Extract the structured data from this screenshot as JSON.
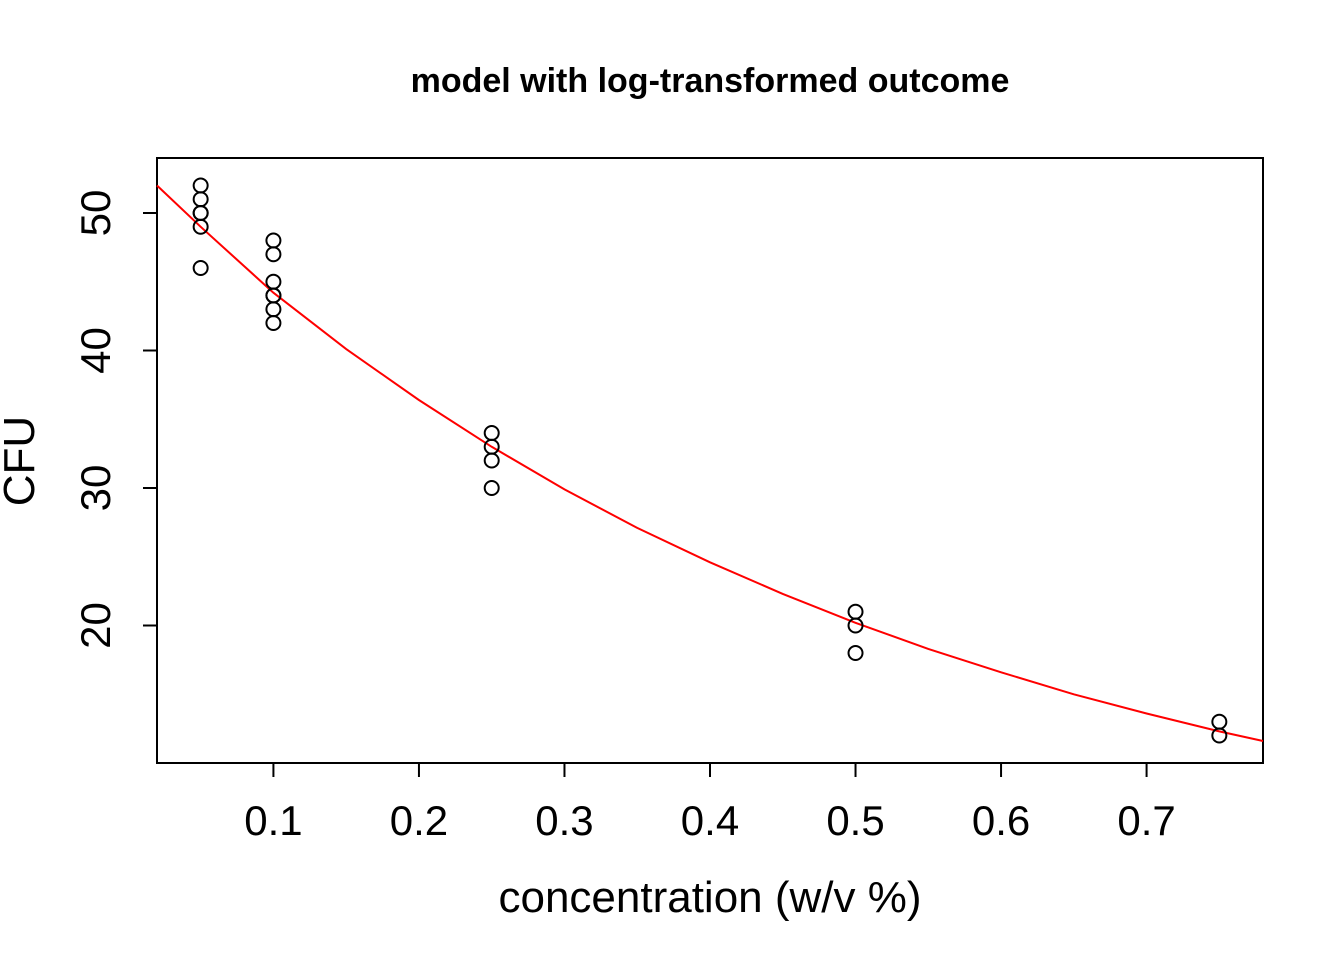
{
  "chart_data": {
    "type": "scatter",
    "title": "model with log-transformed outcome",
    "xlabel": "concentration (w/v %)",
    "ylabel": "CFU",
    "xlim": [
      0.02,
      0.78
    ],
    "ylim": [
      10,
      54
    ],
    "x_ticks": [
      0.1,
      0.2,
      0.3,
      0.4,
      0.5,
      0.6,
      0.7
    ],
    "x_tick_labels": [
      "0.1",
      "0.2",
      "0.3",
      "0.4",
      "0.5",
      "0.6",
      "0.7"
    ],
    "y_ticks": [
      20,
      30,
      40,
      50
    ],
    "y_tick_labels": [
      "20",
      "30",
      "40",
      "50"
    ],
    "grid": false,
    "series": [
      {
        "kind": "points",
        "color": "#000000",
        "x": [
          0.05,
          0.05,
          0.05,
          0.05,
          0.05,
          0.05,
          0.1,
          0.1,
          0.1,
          0.1,
          0.1,
          0.1,
          0.1,
          0.25,
          0.25,
          0.25,
          0.25,
          0.5,
          0.5,
          0.5,
          0.75,
          0.75
        ],
        "y": [
          52,
          51,
          50,
          50,
          49,
          46,
          48,
          47,
          45,
          44,
          44,
          43,
          42,
          34,
          33,
          32,
          30,
          21,
          20,
          18,
          13,
          12
        ]
      },
      {
        "kind": "line",
        "color": "#ff0000",
        "x": [
          0.02,
          0.05,
          0.1,
          0.15,
          0.2,
          0.25,
          0.3,
          0.35,
          0.4,
          0.45,
          0.5,
          0.55,
          0.6,
          0.65,
          0.7,
          0.75,
          0.78
        ],
        "y": [
          52.0,
          49.0,
          44.2,
          40.1,
          36.4,
          33.0,
          29.9,
          27.1,
          24.6,
          22.3,
          20.2,
          18.3,
          16.6,
          15.0,
          13.6,
          12.3,
          11.6
        ]
      }
    ]
  }
}
